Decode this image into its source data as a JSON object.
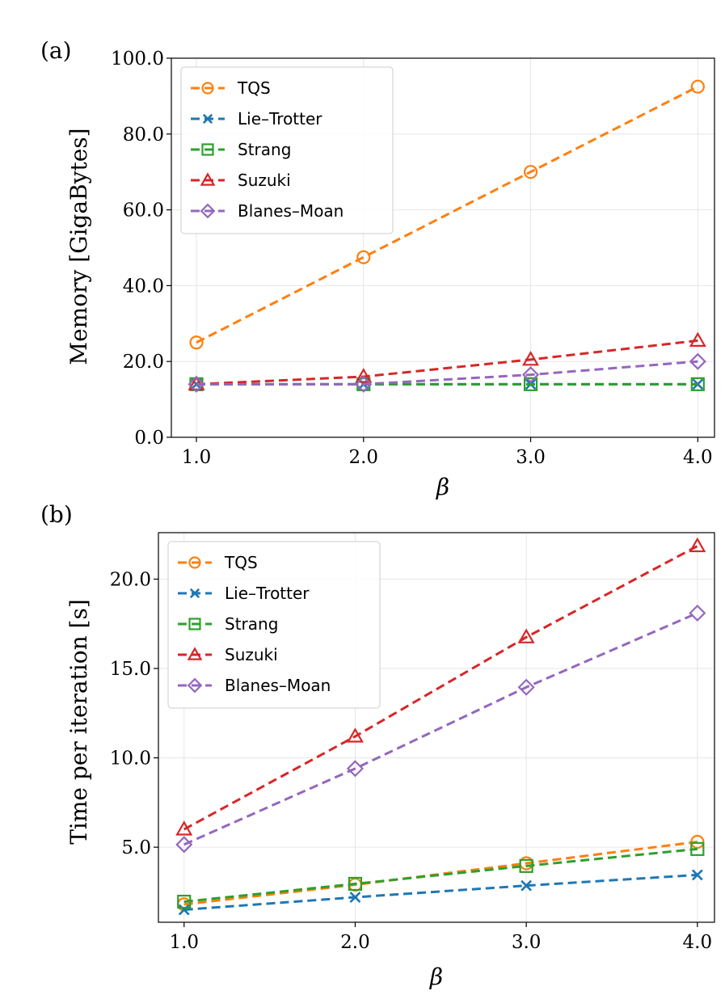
{
  "chart_data": [
    {
      "panel_label": "(a)",
      "type": "line",
      "title": "",
      "xlabel": "β",
      "ylabel": "Memory [GigaBytes]",
      "xlim": [
        0.85,
        4.1
      ],
      "ylim": [
        0.0,
        100.0
      ],
      "x": [
        1.0,
        2.0,
        3.0,
        4.0
      ],
      "xticks": [
        "1.0",
        "2.0",
        "3.0",
        "4.0"
      ],
      "yticks": [
        "0.0",
        "20.0",
        "40.0",
        "60.0",
        "80.0",
        "100.0"
      ],
      "ytick_values": [
        0,
        20,
        40,
        60,
        80,
        100
      ],
      "legend_position": "top-left",
      "grid": true,
      "series": [
        {
          "name": "TQS",
          "color": "#ff7f0e",
          "marker": "circle",
          "values": [
            25.0,
            47.5,
            70.0,
            92.5
          ]
        },
        {
          "name": "Lie–Trotter",
          "color": "#1f77b4",
          "marker": "x",
          "values": [
            14.0,
            14.0,
            14.0,
            14.0
          ]
        },
        {
          "name": "Strang",
          "color": "#2ca02c",
          "marker": "square",
          "values": [
            14.0,
            14.0,
            14.0,
            14.0
          ]
        },
        {
          "name": "Suzuki",
          "color": "#d62728",
          "marker": "triangle",
          "values": [
            14.0,
            16.0,
            20.5,
            25.5
          ]
        },
        {
          "name": "Blanes–Moan",
          "color": "#9467bd",
          "marker": "diamond",
          "values": [
            14.0,
            14.0,
            16.5,
            20.0
          ]
        }
      ]
    },
    {
      "panel_label": "(b)",
      "type": "line",
      "title": "",
      "xlabel": "β",
      "ylabel": "Time per iteration [s]",
      "xlim": [
        0.85,
        4.1
      ],
      "ylim": [
        0.8,
        22.6
      ],
      "x": [
        1.0,
        2.0,
        3.0,
        4.0
      ],
      "xticks": [
        "1.0",
        "2.0",
        "3.0",
        "4.0"
      ],
      "yticks": [
        "5.0",
        "10.0",
        "15.0",
        "20.0"
      ],
      "ytick_values": [
        5,
        10,
        15,
        20
      ],
      "legend_position": "top-left",
      "grid": true,
      "series": [
        {
          "name": "TQS",
          "color": "#ff7f0e",
          "marker": "circle",
          "values": [
            1.8,
            2.9,
            4.1,
            5.3
          ]
        },
        {
          "name": "Lie–Trotter",
          "color": "#1f77b4",
          "marker": "x",
          "values": [
            1.5,
            2.2,
            2.85,
            3.45
          ]
        },
        {
          "name": "Strang",
          "color": "#2ca02c",
          "marker": "square",
          "values": [
            1.95,
            2.95,
            3.95,
            4.9
          ]
        },
        {
          "name": "Suzuki",
          "color": "#d62728",
          "marker": "triangle",
          "values": [
            6.0,
            11.2,
            16.75,
            21.85
          ]
        },
        {
          "name": "Blanes–Moan",
          "color": "#9467bd",
          "marker": "diamond",
          "values": [
            5.15,
            9.4,
            13.95,
            18.1
          ]
        }
      ]
    }
  ]
}
